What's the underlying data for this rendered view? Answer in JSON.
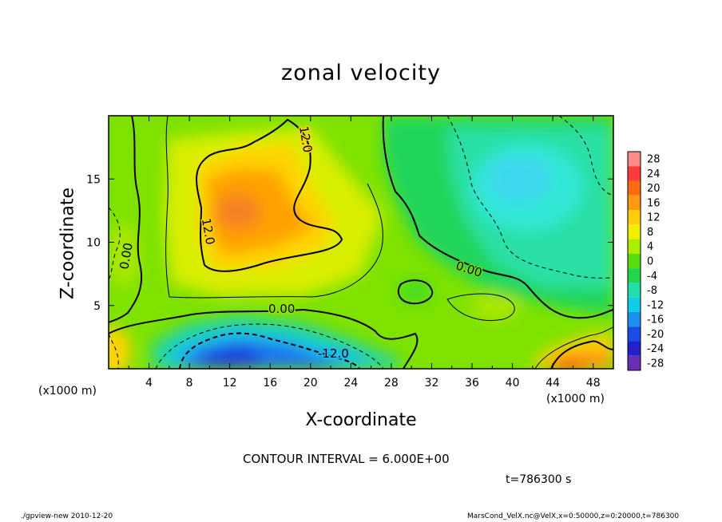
{
  "header": {
    "interval_text": "CONTOUR INTERVAL = 6.000E+00",
    "time_text": "t=786300 s"
  },
  "footer": {
    "left": "./gpview-new   2010-12-20",
    "right": "MarsCond_VelX.nc@VelX,x=0:50000,z=0:20000,t=786300"
  },
  "axes": {
    "x_unit_left": "(x1000 m)",
    "x_unit_right": "(x1000 m)"
  },
  "chart_data": {
    "type": "heatmap",
    "title": "zonal velocity",
    "xlabel": "X-coordinate",
    "ylabel": "Z-coordinate",
    "x_range": [
      0,
      50
    ],
    "y_range": [
      0,
      20
    ],
    "x_ticks": [
      4,
      8,
      12,
      16,
      20,
      24,
      28,
      32,
      36,
      40,
      44,
      48
    ],
    "y_ticks": [
      5,
      10,
      15
    ],
    "contour_interval": 6.0,
    "contour_labels": [
      "12.0",
      "12.0",
      "0.00",
      "0.00",
      "0.00",
      "-12.0"
    ],
    "colorbar": {
      "levels": [
        28,
        24,
        20,
        16,
        12,
        8,
        4,
        0,
        -4,
        -8,
        -12,
        -16,
        -20,
        -24,
        -28
      ],
      "colors": [
        "#ff8a8a",
        "#ff3c3c",
        "#ff6a12",
        "#ff9a10",
        "#ffcc10",
        "#f0f000",
        "#aaee00",
        "#55dd11",
        "#22d64a",
        "#22ddaa",
        "#11cce8",
        "#1b90f0",
        "#1c4ce8",
        "#2222cc",
        "#6a2eb4"
      ]
    },
    "features": [
      {
        "kind": "max",
        "x": 13,
        "z": 12.5,
        "value": 20,
        "note": "upper-left warm core"
      },
      {
        "kind": "min",
        "x": 12,
        "z": 1.5,
        "value": -18,
        "note": "low-level jet minimum"
      },
      {
        "kind": "max",
        "x": 45,
        "z": 0.8,
        "value": 18,
        "note": "lower-right warm patch"
      },
      {
        "kind": "min",
        "x": 41,
        "z": 15,
        "value": -9,
        "note": "upper-right negative region"
      }
    ]
  }
}
